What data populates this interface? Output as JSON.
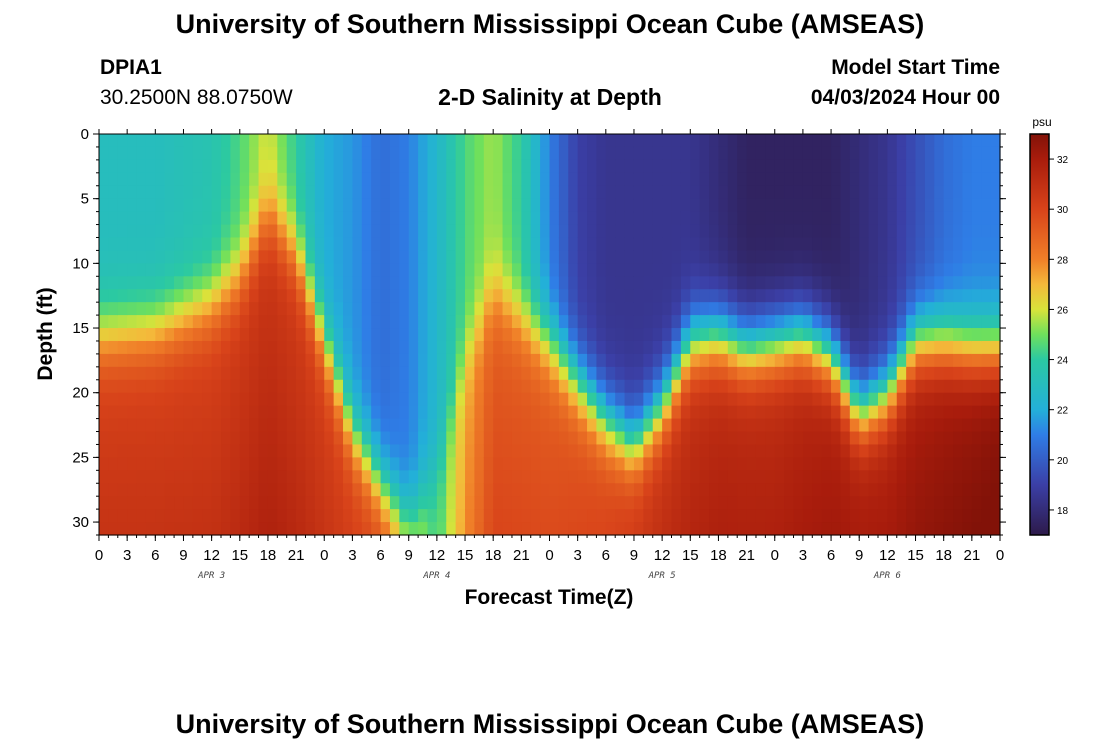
{
  "titles": {
    "main": "University of Southern Mississippi Ocean Cube (AMSEAS)",
    "bottom": "University of Southern Mississippi Ocean Cube (AMSEAS)"
  },
  "header": {
    "station_name": "DPIA1",
    "coordinates": "30.2500N  88.0750W",
    "model_start_label": "Model Start Time",
    "model_start_value": "04/03/2024 Hour 00"
  },
  "colors": {
    "c17": "#2d1a4a",
    "c19": "#3b3fa6",
    "c21": "#2f7de6",
    "c22": "#23b0d8",
    "c24": "#2bc9a2",
    "c25": "#6fe05c",
    "c26": "#d9e33a",
    "c27": "#f4b93a",
    "c28": "#f07f28",
    "c30": "#d8431a",
    "c32": "#a81c0c",
    "c33": "#821208"
  },
  "chart_data": {
    "type": "heatmap",
    "title": "2-D Salinity at Depth",
    "xlabel": "Forecast Time(Z)",
    "ylabel": "Depth (ft)",
    "x_range_hours": [
      0,
      96
    ],
    "ylim": [
      0,
      31
    ],
    "y_ticks": [
      "0",
      "5",
      "10",
      "15",
      "20",
      "25",
      "30"
    ],
    "x_ticks": [
      "0",
      "3",
      "6",
      "9",
      "12",
      "15",
      "18",
      "21",
      "0",
      "3",
      "6",
      "9",
      "12",
      "15",
      "18",
      "21",
      "0",
      "3",
      "6",
      "9",
      "12",
      "15",
      "18",
      "21",
      "0",
      "3",
      "6",
      "9",
      "12",
      "15",
      "18",
      "21",
      "0"
    ],
    "day_labels": [
      "APR 3",
      "APR 4",
      "APR 5",
      "APR 6"
    ],
    "colorbar": {
      "unit": "psu",
      "range": [
        17,
        33
      ],
      "ticks": [
        "18",
        "20",
        "22",
        "24",
        "26",
        "28",
        "30",
        "32"
      ]
    },
    "interface_depth_ft": [
      {
        "hour": 0,
        "depth": 15.5
      },
      {
        "hour": 6,
        "depth": 15.0
      },
      {
        "hour": 12,
        "depth": 13.0
      },
      {
        "hour": 15,
        "depth": 11.0
      },
      {
        "hour": 18,
        "depth": 6.0
      },
      {
        "hour": 21,
        "depth": 9.0
      },
      {
        "hour": 24,
        "depth": 16.0
      },
      {
        "hour": 27,
        "depth": 23.0
      },
      {
        "hour": 30,
        "depth": 27.0
      },
      {
        "hour": 33,
        "depth": 30.0
      },
      {
        "hour": 36,
        "depth": 26.0
      },
      {
        "hour": 39,
        "depth": 17.0
      },
      {
        "hour": 42,
        "depth": 12.0
      },
      {
        "hour": 45,
        "depth": 14.0
      },
      {
        "hour": 48,
        "depth": 16.0
      },
      {
        "hour": 51,
        "depth": 19.0
      },
      {
        "hour": 54,
        "depth": 22.0
      },
      {
        "hour": 57,
        "depth": 24.0
      },
      {
        "hour": 60,
        "depth": 21.0
      },
      {
        "hour": 63,
        "depth": 16.0
      },
      {
        "hour": 66,
        "depth": 15.5
      },
      {
        "hour": 69,
        "depth": 16.5
      },
      {
        "hour": 72,
        "depth": 16.0
      },
      {
        "hour": 75,
        "depth": 15.5
      },
      {
        "hour": 78,
        "depth": 17.0
      },
      {
        "hour": 81,
        "depth": 21.5
      },
      {
        "hour": 84,
        "depth": 20.0
      },
      {
        "hour": 87,
        "depth": 16.0
      },
      {
        "hour": 90,
        "depth": 16.0
      },
      {
        "hour": 93,
        "depth": 16.5
      },
      {
        "hour": 96,
        "depth": 16.5
      }
    ],
    "surface_salinity_psu": [
      {
        "hour": 0,
        "value": 23.0
      },
      {
        "hour": 6,
        "value": 23.0
      },
      {
        "hour": 12,
        "value": 23.5
      },
      {
        "hour": 15,
        "value": 24.5
      },
      {
        "hour": 18,
        "value": 26.0
      },
      {
        "hour": 21,
        "value": 24.0
      },
      {
        "hour": 24,
        "value": 22.0
      },
      {
        "hour": 27,
        "value": 21.5
      },
      {
        "hour": 30,
        "value": 20.5
      },
      {
        "hour": 33,
        "value": 21.0
      },
      {
        "hour": 36,
        "value": 22.5
      },
      {
        "hour": 39,
        "value": 24.5
      },
      {
        "hour": 42,
        "value": 25.5
      },
      {
        "hour": 45,
        "value": 24.0
      },
      {
        "hour": 48,
        "value": 21.0
      },
      {
        "hour": 51,
        "value": 19.0
      },
      {
        "hour": 54,
        "value": 18.5
      },
      {
        "hour": 57,
        "value": 18.5
      },
      {
        "hour": 60,
        "value": 18.5
      },
      {
        "hour": 63,
        "value": 18.5
      },
      {
        "hour": 66,
        "value": 18.0
      },
      {
        "hour": 69,
        "value": 17.5
      },
      {
        "hour": 72,
        "value": 17.5
      },
      {
        "hour": 75,
        "value": 17.5
      },
      {
        "hour": 78,
        "value": 17.5
      },
      {
        "hour": 81,
        "value": 18.0
      },
      {
        "hour": 84,
        "value": 18.5
      },
      {
        "hour": 87,
        "value": 19.5
      },
      {
        "hour": 90,
        "value": 20.5
      },
      {
        "hour": 93,
        "value": 21.0
      },
      {
        "hour": 96,
        "value": 21.0
      }
    ],
    "bottom_salinity_psu": [
      {
        "hour": 0,
        "value": 30.0
      },
      {
        "hour": 12,
        "value": 30.0
      },
      {
        "hour": 18,
        "value": 30.5
      },
      {
        "hour": 24,
        "value": 30.0
      },
      {
        "hour": 30,
        "value": 29.5
      },
      {
        "hour": 33,
        "value": 27.0
      },
      {
        "hour": 36,
        "value": 24.0
      },
      {
        "hour": 39,
        "value": 27.0
      },
      {
        "hour": 42,
        "value": 29.0
      },
      {
        "hour": 48,
        "value": 29.0
      },
      {
        "hour": 54,
        "value": 29.5
      },
      {
        "hour": 60,
        "value": 30.5
      },
      {
        "hour": 66,
        "value": 31.0
      },
      {
        "hour": 72,
        "value": 31.0
      },
      {
        "hour": 78,
        "value": 31.5
      },
      {
        "hour": 84,
        "value": 31.5
      },
      {
        "hour": 90,
        "value": 32.0
      },
      {
        "hour": 96,
        "value": 32.5
      }
    ]
  }
}
